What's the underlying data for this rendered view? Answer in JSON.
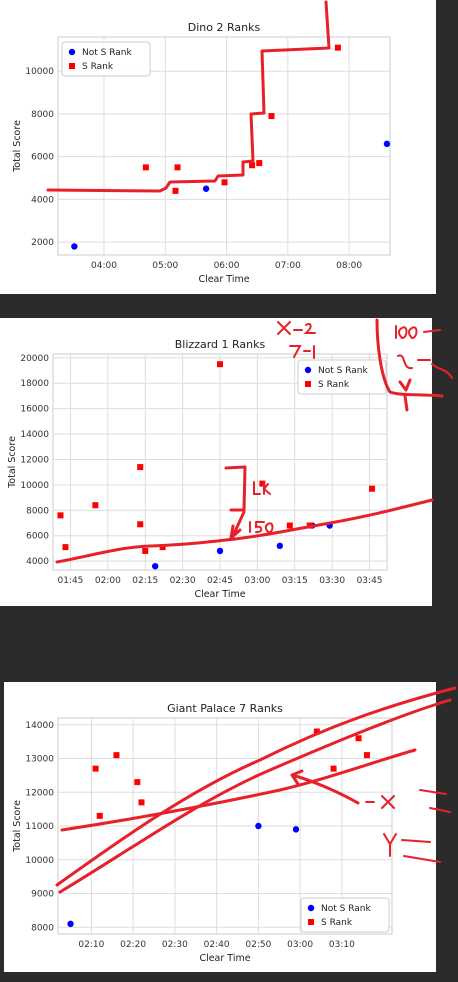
{
  "chart_data": [
    {
      "type": "scatter",
      "title": "Dino 2 Ranks",
      "xlabel": "Clear Time",
      "ylabel": "Total Score",
      "xlim": [
        195,
        520
      ],
      "ylim": [
        1400,
        11600
      ],
      "xticks": [
        240,
        300,
        360,
        420,
        480
      ],
      "xtick_labels": [
        "04:00",
        "05:00",
        "06:00",
        "07:00",
        "08:00"
      ],
      "yticks": [
        2000,
        4000,
        6000,
        8000,
        10000
      ],
      "ytick_labels": [
        "2000",
        "4000",
        "6000",
        "8000",
        "10000"
      ],
      "grid": true,
      "legend_position": "top-left",
      "series": [
        {
          "name": "Not S Rank",
          "marker": "circle",
          "color": "#0000ff",
          "x": [
            211,
            340,
            517
          ],
          "y": [
            1800,
            4500,
            6600
          ]
        },
        {
          "name": "S Rank",
          "marker": "square",
          "color": "#ff0000",
          "x": [
            281,
            310,
            312,
            358,
            385,
            392,
            404,
            469
          ],
          "y": [
            5500,
            4400,
            5500,
            4800,
            5600,
            5700,
            7900,
            11100
          ]
        }
      ]
    },
    {
      "type": "scatter",
      "title": "Blizzard 1 Ranks",
      "xlabel": "Clear Time",
      "ylabel": "Total Score",
      "xlim": [
        98,
        232
      ],
      "ylim": [
        3300,
        20300
      ],
      "xticks": [
        105,
        120,
        135,
        150,
        165,
        180,
        195,
        210,
        225
      ],
      "xtick_labels": [
        "01:45",
        "02:00",
        "02:15",
        "02:30",
        "02:45",
        "03:00",
        "03:15",
        "03:30",
        "03:45"
      ],
      "yticks": [
        4000,
        6000,
        8000,
        10000,
        12000,
        14000,
        16000,
        18000,
        20000
      ],
      "ytick_labels": [
        "4000",
        "6000",
        "8000",
        "10000",
        "12000",
        "14000",
        "16000",
        "18000",
        "20000"
      ],
      "grid": true,
      "legend_position": "top-right",
      "series": [
        {
          "name": "Not S Rank",
          "marker": "circle",
          "color": "#0000ff",
          "x": [
            139,
            165,
            189,
            202,
            209
          ],
          "y": [
            3600,
            4800,
            5200,
            6800,
            6800
          ]
        },
        {
          "name": "S Rank",
          "marker": "square",
          "color": "#ff0000",
          "x": [
            101,
            103,
            115,
            133,
            133,
            135,
            142,
            165,
            182,
            193,
            201,
            226
          ],
          "y": [
            7600,
            5100,
            8400,
            6900,
            11400,
            4800,
            5100,
            19500,
            10100,
            6800,
            6800,
            9700
          ]
        }
      ]
    },
    {
      "type": "scatter",
      "title": "Giant Palace 7 Ranks",
      "xlabel": "Clear Time",
      "ylabel": "Total Score",
      "xlim": [
        122,
        202
      ],
      "ylim": [
        7800,
        14200
      ],
      "xticks": [
        130,
        140,
        150,
        160,
        170,
        180,
        190
      ],
      "xtick_labels": [
        "02:10",
        "02:20",
        "02:30",
        "02:40",
        "02:50",
        "03:00",
        "03:10"
      ],
      "yticks": [
        8000,
        9000,
        10000,
        11000,
        12000,
        13000,
        14000
      ],
      "ytick_labels": [
        "8000",
        "9000",
        "10000",
        "11000",
        "12000",
        "13000",
        "14000"
      ],
      "grid": true,
      "legend_position": "bottom-right",
      "series": [
        {
          "name": "Not S Rank",
          "marker": "circle",
          "color": "#0000ff",
          "x": [
            125,
            170,
            179
          ],
          "y": [
            8100,
            11000,
            10900
          ]
        },
        {
          "name": "S Rank",
          "marker": "square",
          "color": "#ff0000",
          "x": [
            131,
            132,
            136,
            141,
            142,
            184,
            188,
            194,
            196
          ],
          "y": [
            12700,
            11300,
            13100,
            12300,
            11700,
            13800,
            12700,
            13600,
            13100
          ]
        }
      ]
    }
  ],
  "annotations": {
    "stroke_color": "#e8202a"
  }
}
